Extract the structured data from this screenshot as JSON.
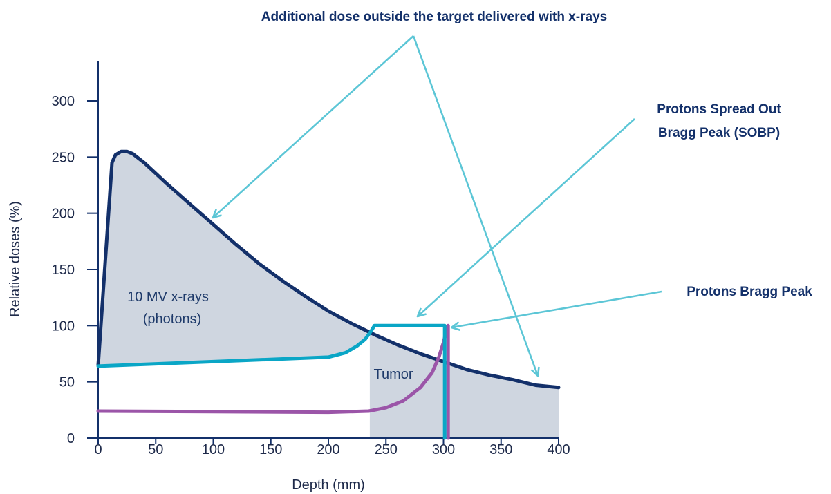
{
  "chart_data": {
    "type": "line",
    "xlabel": "Depth (mm)",
    "ylabel": "Relative doses (%)",
    "xlim": [
      0,
      400
    ],
    "ylim": [
      0,
      300
    ],
    "xticks": [
      0,
      50,
      100,
      150,
      200,
      250,
      300,
      350,
      400
    ],
    "yticks": [
      0,
      50,
      100,
      150,
      200,
      250,
      300
    ],
    "grid": false,
    "series": [
      {
        "name": "10 MV x-rays (photons)",
        "color": "#13306a",
        "x": [
          0,
          12,
          15,
          20,
          25,
          30,
          40,
          60,
          80,
          100,
          120,
          140,
          160,
          180,
          200,
          220,
          240,
          260,
          280,
          300,
          320,
          340,
          360,
          380,
          400
        ],
        "y": [
          65,
          245,
          252,
          255,
          255,
          253,
          245,
          226,
          208,
          190,
          172,
          155,
          140,
          126,
          113,
          102,
          92,
          83,
          75,
          68,
          61,
          56,
          52,
          47,
          45
        ]
      },
      {
        "name": "Protons Spread Out Bragg Peak (SOBP)",
        "color": "#0aa6c6",
        "x": [
          0,
          100,
          200,
          215,
          225,
          232,
          237,
          240,
          300,
          301,
          301
        ],
        "y": [
          64,
          68,
          72,
          76,
          82,
          88,
          95,
          100,
          100,
          100,
          0
        ]
      },
      {
        "name": "Protons Bragg Peak",
        "color": "#9b55a8",
        "x": [
          0,
          100,
          200,
          235,
          250,
          265,
          280,
          290,
          296,
          300,
          303,
          304,
          304
        ],
        "y": [
          24,
          23.5,
          23,
          24,
          27,
          33,
          45,
          58,
          72,
          85,
          98,
          100,
          0
        ]
      }
    ],
    "shaded_regions": [
      "Additional dose outside the target delivered with x-rays"
    ],
    "annotations": [
      {
        "text": "Additional dose outside the target delivered with x-rays"
      },
      {
        "text": "Protons Spread Out"
      },
      {
        "text": "Bragg Peak (SOBP)"
      },
      {
        "text": "Protons Bragg Peak"
      }
    ],
    "inline_labels": [
      {
        "text": "10 MV x-rays"
      },
      {
        "text": "(photons)"
      },
      {
        "text": "Tumor"
      }
    ]
  }
}
